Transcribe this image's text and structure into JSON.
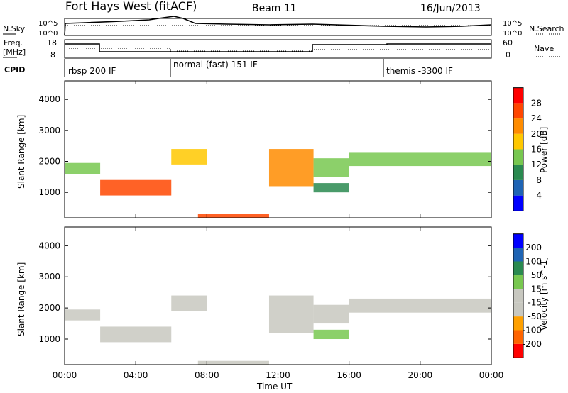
{
  "header": {
    "station": "Fort Hays West (fitACF)",
    "beam": "Beam 11",
    "date": "16/Jun/2013"
  },
  "top_panel": {
    "left_label": "N.Sky",
    "left_ticks": [
      "10^5",
      "10^0"
    ],
    "right_label": "N.Search",
    "right_ticks": [
      "10^5",
      "10^0"
    ]
  },
  "freq_panel": {
    "left_label_1": "Freq.",
    "left_label_2": "[MHz]",
    "left_ticks": [
      "18",
      "8"
    ],
    "right_label": "Nave",
    "right_ticks": [
      "60",
      "0"
    ]
  },
  "cpid": {
    "label": "CPID",
    "segments": [
      {
        "label": "rbsp 200 IF",
        "start_h": 0
      },
      {
        "label": "normal (fast) 151 IF",
        "start_h": 6
      },
      {
        "label": "themis -3300 IF",
        "start_h": 18
      }
    ]
  },
  "colors": {
    "power": [
      "#0000ff",
      "#1e64b4",
      "#2a8a50",
      "#78c850",
      "#ffc800",
      "#ff8c00",
      "#ff4600",
      "#ff0000"
    ],
    "velocity": [
      "#ff0000",
      "#ff6400",
      "#ffa000",
      "#c8c8c0",
      "#c8c8c0",
      "#78c850",
      "#2a8a50",
      "#1e64b4",
      "#0000ff"
    ]
  },
  "chart_data": {
    "type": "heatmap",
    "xlabel": "Time UT",
    "x_range_hours": [
      0,
      24
    ],
    "x_ticks": [
      "00:00",
      "04:00",
      "08:00",
      "12:00",
      "16:00",
      "20:00",
      "00:00"
    ],
    "ylabel": "Slant Range [km]",
    "y_range_km": [
      180,
      4600
    ],
    "y_ticks": [
      1000,
      2000,
      3000,
      4000
    ],
    "panels": [
      {
        "name": "power",
        "colorbar_label": "Power [dB]",
        "colorbar_ticks": [
          "4",
          "8",
          "12",
          "16",
          "20",
          "24",
          "28"
        ],
        "range": [
          0,
          32
        ]
      },
      {
        "name": "velocity",
        "colorbar_label": "Velocity [m s^-1]",
        "colorbar_ticks": [
          "-200",
          "-100",
          "-50",
          "-15",
          "15",
          "50",
          "100",
          "200"
        ],
        "range": [
          -250,
          250
        ]
      }
    ],
    "echo_regions": [
      {
        "t0": 0.0,
        "t1": 2.0,
        "r0": 1600,
        "r1": 1950,
        "power": 14,
        "vel": -20
      },
      {
        "t0": 2.0,
        "t1": 6.0,
        "r0": 900,
        "r1": 1400,
        "power": 26,
        "vel": -40
      },
      {
        "t0": 6.0,
        "t1": 8.0,
        "r0": 1900,
        "r1": 2400,
        "power": 18,
        "vel": 10
      },
      {
        "t0": 7.5,
        "t1": 11.5,
        "r0": 180,
        "r1": 300,
        "power": 24,
        "vel": -60
      },
      {
        "t0": 11.5,
        "t1": 14.0,
        "r0": 1200,
        "r1": 2400,
        "power": 20,
        "vel": 20
      },
      {
        "t0": 14.0,
        "t1": 16.0,
        "r0": 1500,
        "r1": 2100,
        "power": 12,
        "vel": 10
      },
      {
        "t0": 16.0,
        "t1": 24.0,
        "r0": 1850,
        "r1": 2300,
        "power": 12,
        "vel": -5
      },
      {
        "t0": 14.0,
        "t1": 16.0,
        "r0": 1000,
        "r1": 1300,
        "power": 8,
        "vel": 30
      }
    ]
  }
}
